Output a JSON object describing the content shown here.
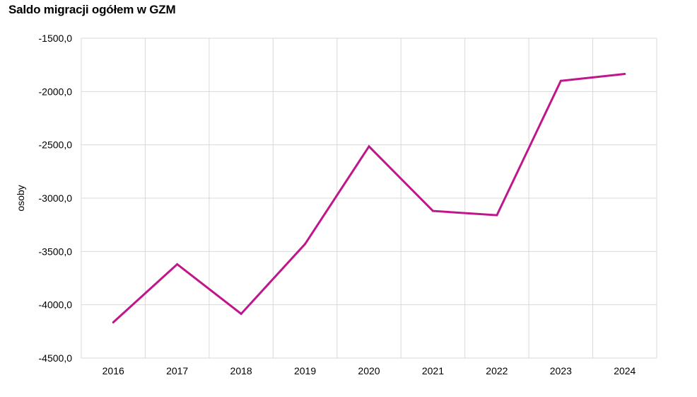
{
  "chart_data": {
    "type": "line",
    "title": "Saldo migracji ogółem w GZM",
    "xlabel": "",
    "ylabel": "osoby",
    "categories": [
      "2016",
      "2017",
      "2018",
      "2019",
      "2020",
      "2021",
      "2022",
      "2023",
      "2024"
    ],
    "series": [
      {
        "values": [
          -4165,
          -3620,
          -4085,
          -3430,
          -2515,
          -3120,
          -3160,
          -1900,
          -1835
        ]
      }
    ],
    "ylim": [
      -4500,
      -1500
    ],
    "yticks": [
      "-1500,0",
      "-2000,0",
      "-2500,0",
      "-3000,0",
      "-3500,0",
      "-4000,0",
      "-4500,0"
    ],
    "ytick_values": [
      -1500,
      -2000,
      -2500,
      -3000,
      -3500,
      -4000,
      -4500
    ],
    "grid": true,
    "colors": {
      "line": "#c0168c",
      "grid": "#d9d9d9"
    }
  }
}
